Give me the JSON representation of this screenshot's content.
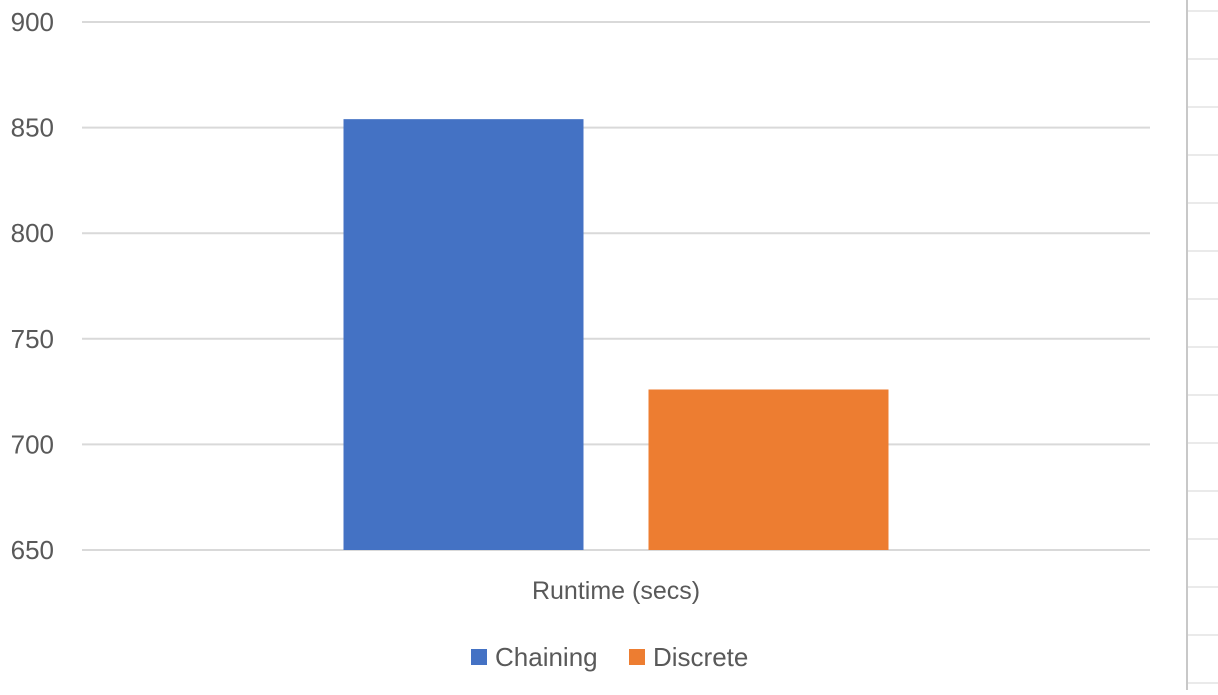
{
  "chart_data": {
    "type": "bar",
    "categories": [
      "Runtime (secs)"
    ],
    "series": [
      {
        "name": "Chaining",
        "values": [
          854
        ],
        "color": "#4472C4"
      },
      {
        "name": "Discrete",
        "values": [
          726
        ],
        "color": "#ED7D31"
      }
    ],
    "ylim": [
      650,
      900
    ],
    "yticks": [
      650,
      700,
      750,
      800,
      850,
      900
    ],
    "grid": true,
    "legend": "bottom",
    "gridline_color": "#D9D9D9",
    "text_color": "#595959"
  }
}
